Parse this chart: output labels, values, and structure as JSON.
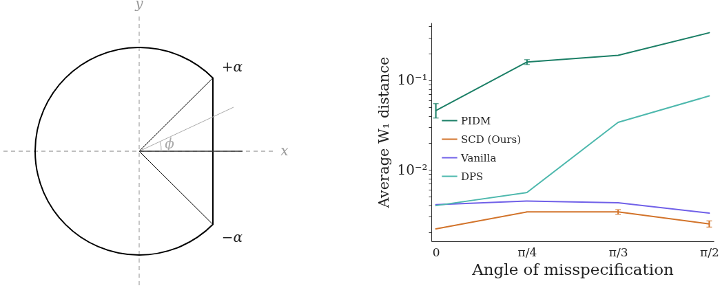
{
  "chart_data": [
    {
      "type": "other",
      "annotations": [
        "y",
        "x",
        "+α",
        "−α",
        "ϕ"
      ]
    },
    {
      "type": "line",
      "xlabel": "Angle of misspecification",
      "ylabel": "Average W₁ distance",
      "categories": [
        "0",
        "π/4",
        "π/3",
        "π/2"
      ],
      "series": [
        {
          "name": "PIDM",
          "color": "#1b7f66",
          "values": [
            0.046,
            0.16,
            0.19,
            0.34
          ],
          "errors": [
            [
              0.038,
              0.055
            ],
            [
              0.15,
              0.17
            ],
            null,
            null
          ]
        },
        {
          "name": "SCD (Ours)",
          "color": "#d2732a",
          "values": [
            0.0022,
            0.0034,
            0.0034,
            0.0025
          ],
          "errors": [
            null,
            null,
            [
              0.0032,
              0.0036
            ],
            [
              0.0023,
              0.0027
            ]
          ]
        },
        {
          "name": "Vanilla",
          "color": "#7060e8",
          "values": [
            0.0041,
            0.0045,
            0.0043,
            0.0033
          ]
        },
        {
          "name": "DPS",
          "color": "#4db8ad",
          "values": [
            0.004,
            0.0056,
            0.034,
            0.067
          ]
        }
      ],
      "log": true,
      "grid": false,
      "legend": "left",
      "ylim": [
        0.0016,
        0.44
      ],
      "yticks": [
        {
          "value": 0.002,
          "label": null
        },
        {
          "value": 0.003,
          "label": null
        },
        {
          "value": 0.004,
          "label": null
        },
        {
          "value": 0.005,
          "label": null
        },
        {
          "value": 0.006,
          "label": null
        },
        {
          "value": 0.007,
          "label": null
        },
        {
          "value": 0.008,
          "label": null
        },
        {
          "value": 0.009,
          "label": null
        },
        {
          "value": 0.01,
          "label": "10⁻²"
        },
        {
          "value": 0.02,
          "label": null
        },
        {
          "value": 0.03,
          "label": null
        },
        {
          "value": 0.04,
          "label": null
        },
        {
          "value": 0.05,
          "label": null
        },
        {
          "value": 0.06,
          "label": null
        },
        {
          "value": 0.07,
          "label": null
        },
        {
          "value": 0.08,
          "label": null
        },
        {
          "value": 0.09,
          "label": null
        },
        {
          "value": 0.1,
          "label": "10⁻¹"
        },
        {
          "value": 0.2,
          "label": null
        },
        {
          "value": 0.3,
          "label": null
        },
        {
          "value": 0.4,
          "label": null
        }
      ]
    }
  ]
}
